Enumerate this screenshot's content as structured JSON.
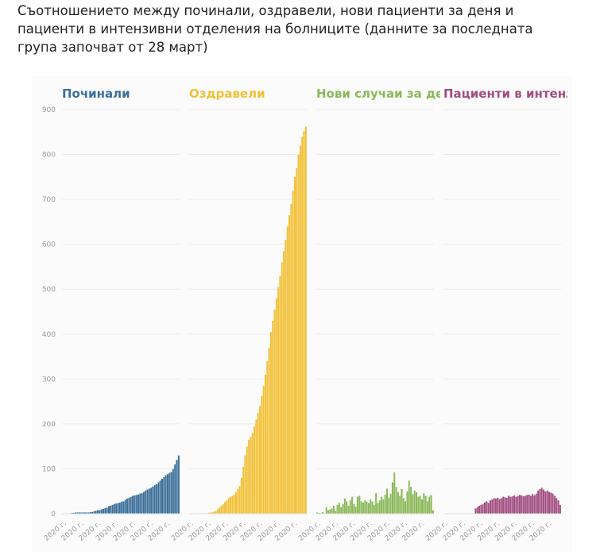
{
  "chart_data": {
    "type": "bar",
    "layout": "small-multiples",
    "title": "Съотношението между починали, оздравели, нови пациенти за деня и пациенти в интензивни отделения на болниците (данните за последната група започват от 28 март)",
    "ylim": [
      0,
      900
    ],
    "yticks": [
      0,
      100,
      200,
      300,
      400,
      500,
      600,
      700,
      800,
      900
    ],
    "grid": true,
    "xtick_labels": [
      "2020 г.",
      "2020 г.",
      "2020 г.",
      "2020 г.",
      "2020 г.",
      "2020 г.",
      "2020 г."
    ],
    "series": [
      {
        "name": "Починали",
        "color": "#3b6f98",
        "values": [
          0,
          0,
          0,
          0,
          1,
          2,
          2,
          3,
          3,
          3,
          3,
          3,
          3,
          3,
          3,
          4,
          4,
          6,
          7,
          8,
          8,
          10,
          11,
          13,
          14,
          17,
          18,
          20,
          22,
          23,
          24,
          25,
          27,
          28,
          31,
          34,
          36,
          38,
          40,
          41,
          42,
          43,
          45,
          46,
          49,
          52,
          54,
          56,
          58,
          61,
          64,
          66,
          70,
          74,
          78,
          82,
          86,
          88,
          91,
          93,
          100,
          110,
          120,
          130
        ]
      },
      {
        "name": "Оздравели",
        "color": "#f2c037",
        "values": [
          0,
          0,
          0,
          0,
          0,
          0,
          0,
          0,
          0,
          0,
          2,
          3,
          3,
          5,
          7,
          10,
          14,
          18,
          22,
          26,
          30,
          35,
          38,
          40,
          42,
          48,
          55,
          62,
          80,
          105,
          130,
          150,
          165,
          172,
          180,
          195,
          210,
          225,
          240,
          262,
          285,
          310,
          340,
          370,
          405,
          430,
          455,
          480,
          505,
          530,
          560,
          585,
          610,
          640,
          665,
          690,
          720,
          750,
          770,
          800,
          820,
          840,
          852,
          862
        ]
      },
      {
        "name": "Нови случаи за де",
        "color": "#8bb95a",
        "values": [
          3,
          2,
          0,
          4,
          0,
          15,
          8,
          10,
          12,
          18,
          6,
          20,
          24,
          15,
          22,
          34,
          28,
          18,
          30,
          38,
          22,
          16,
          38,
          40,
          28,
          25,
          30,
          27,
          24,
          32,
          28,
          20,
          46,
          24,
          30,
          38,
          32,
          43,
          56,
          36,
          45,
          70,
          92,
          60,
          48,
          40,
          55,
          35,
          28,
          50,
          74,
          60,
          44,
          52,
          48,
          38,
          40,
          32,
          46,
          40,
          28,
          38,
          42,
          8
        ]
      },
      {
        "name": "Пациенти в интенз",
        "color": "#a14d80",
        "values": [
          null,
          null,
          null,
          null,
          null,
          null,
          null,
          null,
          null,
          null,
          null,
          null,
          null,
          null,
          null,
          null,
          null,
          12,
          15,
          18,
          20,
          22,
          25,
          28,
          24,
          30,
          32,
          35,
          34,
          36,
          33,
          35,
          38,
          37,
          36,
          40,
          38,
          39,
          41,
          38,
          40,
          42,
          41,
          39,
          40,
          42,
          43,
          40,
          44,
          41,
          45,
          52,
          55,
          58,
          54,
          50,
          52,
          49,
          47,
          45,
          40,
          35,
          30,
          20
        ]
      }
    ]
  }
}
